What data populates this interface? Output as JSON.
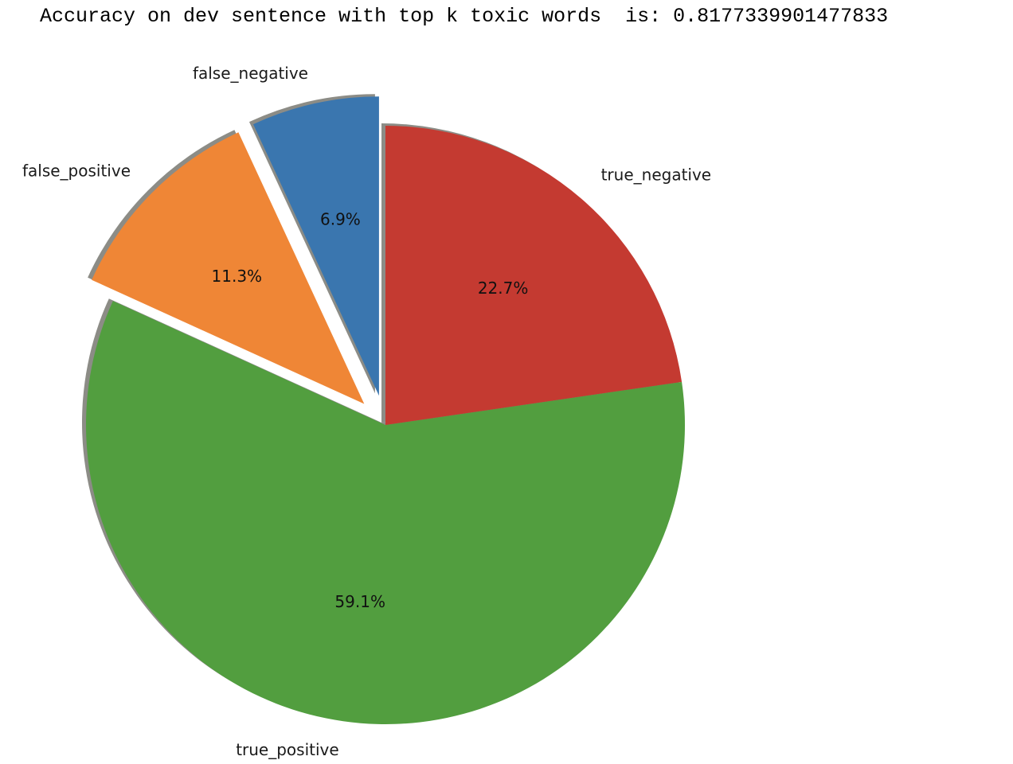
{
  "output": {
    "text": "Accuracy on dev sentence with top k toxic words  is: 0.8177339901477833"
  },
  "chart_data": {
    "type": "pie",
    "title": "",
    "start_angle_deg": 90,
    "direction": "counterclockwise",
    "shadow": true,
    "slices": [
      {
        "label": "false_negative",
        "percent_label": "6.9%",
        "value": 6.9,
        "color": "#3a76af",
        "explode": 0.1
      },
      {
        "label": "false_positive",
        "percent_label": "11.3%",
        "value": 11.3,
        "color": "#ef8636",
        "explode": 0.1
      },
      {
        "label": "true_positive",
        "percent_label": "59.1%",
        "value": 59.1,
        "color": "#529e3f",
        "explode": 0.0
      },
      {
        "label": "true_negative",
        "percent_label": "22.7%",
        "value": 22.7,
        "color": "#c43a31",
        "explode": 0.0
      }
    ]
  }
}
